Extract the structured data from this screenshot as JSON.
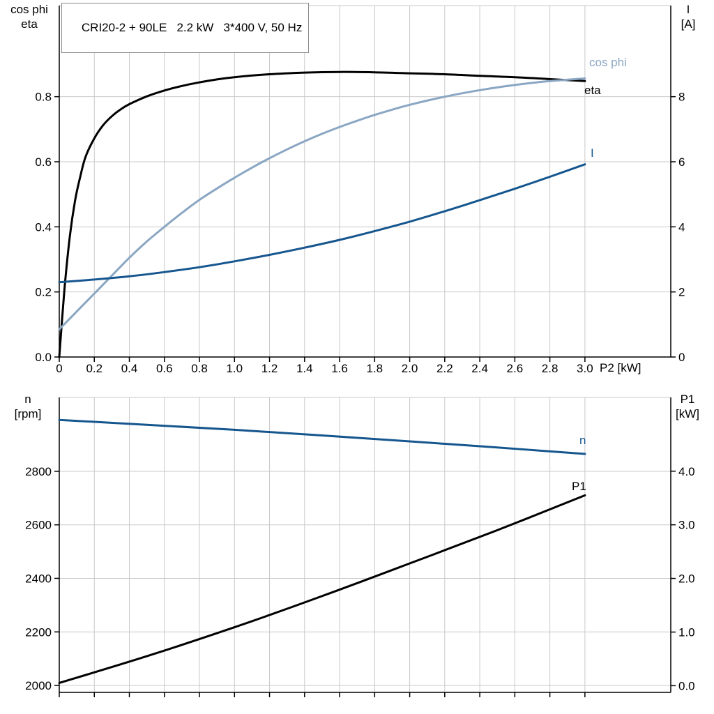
{
  "colors": {
    "black": "#000000",
    "light_blue": "#8aa6c3",
    "dark_blue": "#15568e",
    "grid": "#c9c9c9",
    "axis": "#000000"
  },
  "chart_data": [
    {
      "type": "line",
      "title": "CRI20-2 + 90LE   2.2 kW   3*400 V, 50 Hz",
      "xlabel": "P2 [kW]",
      "ylabel_left": [
        "cos phi",
        "eta"
      ],
      "ylabel_right": [
        "I",
        "[A]"
      ],
      "xlim": [
        0,
        3.49
      ],
      "x_ticks": [
        0,
        0.2,
        0.4,
        0.6,
        0.8,
        1.0,
        1.2,
        1.4,
        1.6,
        1.8,
        2.0,
        2.2,
        2.4,
        2.6,
        2.8,
        3.0
      ],
      "x_tick_labels": [
        "0",
        "0.2",
        "0.4",
        "0.6",
        "0.8",
        "1.0",
        "1.2",
        "1.4",
        "1.6",
        "1.8",
        "2.0",
        "2.2",
        "2.4",
        "2.6",
        "2.8",
        "3.0"
      ],
      "ylim_left": [
        0,
        1.08
      ],
      "yticks_left": [
        0,
        0.2,
        0.4,
        0.6,
        0.8
      ],
      "ytick_labels_left": [
        "0.0",
        "0.2",
        "0.4",
        "0.6",
        "0.8"
      ],
      "ylim_right": [
        0,
        10.8
      ],
      "yticks_right": [
        0,
        2,
        4,
        6,
        8
      ],
      "ytick_labels_right": [
        "0",
        "2",
        "4",
        "6",
        "8"
      ],
      "grid": true,
      "legend_position": "inline-right",
      "series": [
        {
          "name": "eta",
          "axis": "left",
          "color_key": "black",
          "points": [
            [
              0,
              0
            ],
            [
              0.03,
              0.21
            ],
            [
              0.06,
              0.37
            ],
            [
              0.09,
              0.48
            ],
            [
              0.12,
              0.555
            ],
            [
              0.15,
              0.615
            ],
            [
              0.2,
              0.672
            ],
            [
              0.25,
              0.712
            ],
            [
              0.3,
              0.74
            ],
            [
              0.35,
              0.761
            ],
            [
              0.4,
              0.777
            ],
            [
              0.5,
              0.801
            ],
            [
              0.6,
              0.819
            ],
            [
              0.7,
              0.833
            ],
            [
              0.8,
              0.844
            ],
            [
              0.9,
              0.853
            ],
            [
              1.0,
              0.86
            ],
            [
              1.2,
              0.869
            ],
            [
              1.4,
              0.874
            ],
            [
              1.6,
              0.876
            ],
            [
              1.8,
              0.875
            ],
            [
              2.0,
              0.872
            ],
            [
              2.2,
              0.869
            ],
            [
              2.4,
              0.864
            ],
            [
              2.6,
              0.86
            ],
            [
              2.8,
              0.854
            ],
            [
              3.0,
              0.848
            ]
          ]
        },
        {
          "name": "cos phi",
          "axis": "left",
          "color_key": "light_blue",
          "points": [
            [
              0,
              0.085
            ],
            [
              0.1,
              0.14
            ],
            [
              0.2,
              0.195
            ],
            [
              0.3,
              0.25
            ],
            [
              0.4,
              0.305
            ],
            [
              0.5,
              0.355
            ],
            [
              0.6,
              0.4
            ],
            [
              0.7,
              0.443
            ],
            [
              0.8,
              0.483
            ],
            [
              0.9,
              0.518
            ],
            [
              1.0,
              0.551
            ],
            [
              1.1,
              0.582
            ],
            [
              1.2,
              0.611
            ],
            [
              1.3,
              0.638
            ],
            [
              1.4,
              0.663
            ],
            [
              1.5,
              0.686
            ],
            [
              1.6,
              0.707
            ],
            [
              1.7,
              0.726
            ],
            [
              1.8,
              0.744
            ],
            [
              1.9,
              0.76
            ],
            [
              2.0,
              0.775
            ],
            [
              2.2,
              0.8
            ],
            [
              2.4,
              0.82
            ],
            [
              2.6,
              0.836
            ],
            [
              2.8,
              0.848
            ],
            [
              3.0,
              0.856
            ]
          ]
        },
        {
          "name": "I",
          "axis": "right",
          "color_key": "dark_blue",
          "points": [
            [
              0,
              2.3
            ],
            [
              0.2,
              2.38
            ],
            [
              0.4,
              2.48
            ],
            [
              0.6,
              2.61
            ],
            [
              0.8,
              2.76
            ],
            [
              1.0,
              2.94
            ],
            [
              1.2,
              3.14
            ],
            [
              1.4,
              3.36
            ],
            [
              1.6,
              3.6
            ],
            [
              1.8,
              3.87
            ],
            [
              2.0,
              4.16
            ],
            [
              2.2,
              4.48
            ],
            [
              2.4,
              4.82
            ],
            [
              2.6,
              5.17
            ],
            [
              2.8,
              5.54
            ],
            [
              3.0,
              5.92
            ]
          ]
        }
      ]
    },
    {
      "type": "line",
      "xlabel": "",
      "ylabel_left": [
        "n",
        "[rpm]"
      ],
      "ylabel_right": [
        "P1",
        "[kW]"
      ],
      "xlim": [
        0,
        3.49
      ],
      "x_ticks": [
        0,
        0.2,
        0.4,
        0.6,
        0.8,
        1.0,
        1.2,
        1.4,
        1.6,
        1.8,
        2.0,
        2.2,
        2.4,
        2.6,
        2.8,
        3.0
      ],
      "x_tick_labels": [],
      "ylim_left": [
        1974,
        3076
      ],
      "yticks_left": [
        2000,
        2200,
        2400,
        2600,
        2800
      ],
      "ytick_labels_left": [
        "2000",
        "2200",
        "2400",
        "2600",
        "2800"
      ],
      "ylim_right": [
        -0.125,
        5.375
      ],
      "yticks_right": [
        0,
        1,
        2,
        3,
        4
      ],
      "ytick_labels_right": [
        "0.0",
        "1.0",
        "2.0",
        "3.0",
        "4.0"
      ],
      "grid": true,
      "legend_position": "inline-right",
      "series": [
        {
          "name": "n",
          "axis": "left",
          "color_key": "dark_blue",
          "points": [
            [
              0,
              2992
            ],
            [
              0.5,
              2974
            ],
            [
              1.0,
              2955
            ],
            [
              1.5,
              2934
            ],
            [
              2.0,
              2912
            ],
            [
              2.5,
              2889
            ],
            [
              3.0,
              2865
            ]
          ]
        },
        {
          "name": "P1",
          "axis": "right",
          "color_key": "black",
          "points": [
            [
              0,
              0.05
            ],
            [
              0.5,
              0.55
            ],
            [
              1.0,
              1.09
            ],
            [
              1.5,
              1.67
            ],
            [
              2.0,
              2.28
            ],
            [
              2.5,
              2.9
            ],
            [
              3.0,
              3.55
            ]
          ]
        }
      ]
    }
  ]
}
